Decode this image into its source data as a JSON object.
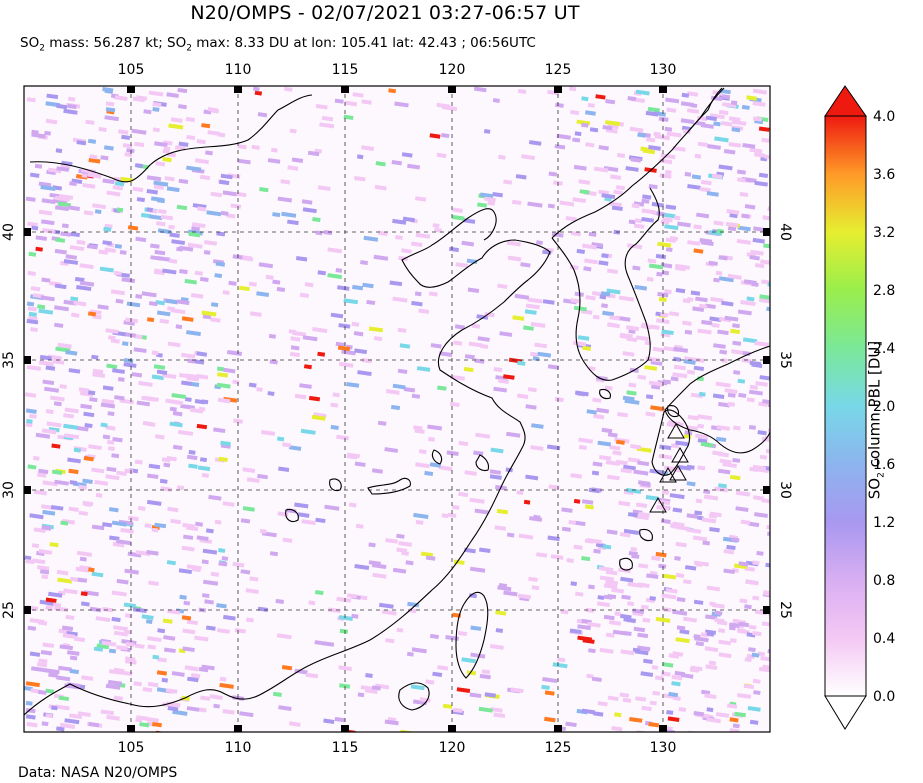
{
  "header": {
    "title": "N20/OMPS - 02/07/2021 03:27-06:57 UT",
    "mass_label": "SO",
    "mass_sub": "2",
    "mass_text": " mass: 56.287 kt; SO",
    "max_sub": "2",
    "max_text": " max: 8.33 DU at lon: 105.41 lat: 42.43 ; 06:56UTC"
  },
  "map": {
    "lon_range": [
      100,
      135
    ],
    "lat_range": [
      20,
      45
    ],
    "lon_ticks": [
      "105",
      "110",
      "115",
      "120",
      "125",
      "130"
    ],
    "lat_ticks": [
      "40",
      "35",
      "30",
      "25"
    ],
    "gridlines": "dashed",
    "volcano_markers": "triangles"
  },
  "colorbar": {
    "label_main": "SO",
    "label_sub": "2",
    "label_rest": " column PBL [DU]",
    "ticks": [
      "4.0",
      "3.6",
      "3.2",
      "2.8",
      "2.4",
      "2.0",
      "1.6",
      "1.2",
      "0.8",
      "0.4",
      "0.0"
    ],
    "range": [
      0.0,
      4.0
    ],
    "colors": [
      "#ffffff",
      "#f4c8f4",
      "#d0a8f0",
      "#a898f0",
      "#8cb4ee",
      "#78d8e8",
      "#7ae898",
      "#9aee4c",
      "#e6ee30",
      "#ffc030",
      "#ff7a20",
      "#ee1a10"
    ]
  },
  "footer": {
    "credit": "Data: NASA N20/OMPS"
  }
}
